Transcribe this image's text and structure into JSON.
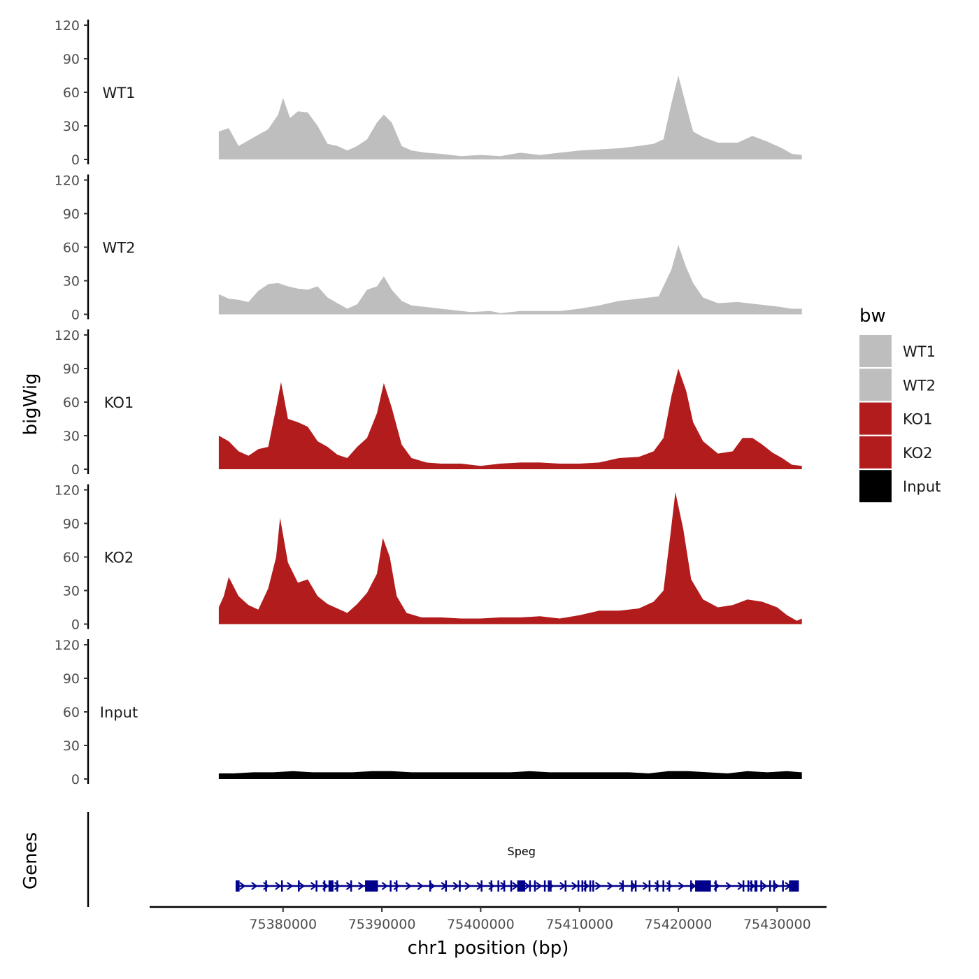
{
  "chart_data": {
    "type": "area",
    "xlabel": "chr1 position (bp)",
    "ylabel": "bigWig",
    "genes_label": "Genes",
    "xlim": [
      75366500,
      75435000
    ],
    "x_region": [
      75373500,
      75432500
    ],
    "x_ticks": [
      75380000,
      75390000,
      75400000,
      75410000,
      75420000,
      75430000
    ],
    "x_tick_labels": [
      "75380000",
      "75390000",
      "75400000",
      "75410000",
      "75420000",
      "75430000"
    ],
    "ylim": [
      0,
      120
    ],
    "y_ticks": [
      0,
      30,
      60,
      90,
      120
    ],
    "y_tick_labels": [
      "0",
      "30",
      "60",
      "90",
      "120"
    ],
    "legend": {
      "title": "bw",
      "entries": [
        "WT1",
        "WT2",
        "KO1",
        "KO2",
        "Input"
      ]
    },
    "colors": {
      "WT1": "#bebebe",
      "WT2": "#bebebe",
      "KO1": "#b21c1c",
      "KO2": "#b21c1c",
      "Input": "#000000",
      "gene": "#00008b"
    },
    "series": [
      {
        "name": "WT1",
        "points": [
          [
            75373500,
            25
          ],
          [
            75374500,
            28
          ],
          [
            75375500,
            12
          ],
          [
            75376500,
            17
          ],
          [
            75377500,
            22
          ],
          [
            75378500,
            27
          ],
          [
            75379500,
            40
          ],
          [
            75380000,
            55
          ],
          [
            75380700,
            37
          ],
          [
            75381500,
            43
          ],
          [
            75382500,
            42
          ],
          [
            75383500,
            30
          ],
          [
            75384500,
            14
          ],
          [
            75385500,
            12
          ],
          [
            75386500,
            8
          ],
          [
            75387500,
            12
          ],
          [
            75388500,
            18
          ],
          [
            75389500,
            33
          ],
          [
            75390200,
            40
          ],
          [
            75391000,
            33
          ],
          [
            75392000,
            12
          ],
          [
            75393000,
            8
          ],
          [
            75394500,
            6
          ],
          [
            75396000,
            5
          ],
          [
            75398000,
            3
          ],
          [
            75400000,
            4
          ],
          [
            75402000,
            3
          ],
          [
            75404000,
            6
          ],
          [
            75406000,
            4
          ],
          [
            75408000,
            6
          ],
          [
            75410000,
            8
          ],
          [
            75412000,
            9
          ],
          [
            75414000,
            10
          ],
          [
            75416000,
            12
          ],
          [
            75417500,
            14
          ],
          [
            75418500,
            18
          ],
          [
            75419300,
            50
          ],
          [
            75420000,
            75
          ],
          [
            75420800,
            48
          ],
          [
            75421500,
            25
          ],
          [
            75422500,
            20
          ],
          [
            75424000,
            15
          ],
          [
            75426000,
            15
          ],
          [
            75427500,
            21
          ],
          [
            75429000,
            16
          ],
          [
            75430500,
            10
          ],
          [
            75431500,
            5
          ],
          [
            75432500,
            4
          ]
        ]
      },
      {
        "name": "WT2",
        "points": [
          [
            75373500,
            18
          ],
          [
            75374500,
            14
          ],
          [
            75375500,
            13
          ],
          [
            75376500,
            11
          ],
          [
            75377500,
            21
          ],
          [
            75378500,
            27
          ],
          [
            75379500,
            28
          ],
          [
            75380500,
            25
          ],
          [
            75381500,
            23
          ],
          [
            75382500,
            22
          ],
          [
            75383500,
            25
          ],
          [
            75384500,
            15
          ],
          [
            75385500,
            10
          ],
          [
            75386500,
            5
          ],
          [
            75387500,
            9
          ],
          [
            75388500,
            22
          ],
          [
            75389500,
            25
          ],
          [
            75390200,
            34
          ],
          [
            75391000,
            22
          ],
          [
            75392000,
            12
          ],
          [
            75393000,
            8
          ],
          [
            75395000,
            6
          ],
          [
            75397000,
            4
          ],
          [
            75399000,
            2
          ],
          [
            75401000,
            3
          ],
          [
            75402000,
            1
          ],
          [
            75404000,
            3
          ],
          [
            75406000,
            3
          ],
          [
            75408000,
            3
          ],
          [
            75410000,
            5
          ],
          [
            75412000,
            8
          ],
          [
            75414000,
            12
          ],
          [
            75416000,
            14
          ],
          [
            75418000,
            16
          ],
          [
            75419300,
            40
          ],
          [
            75420000,
            62
          ],
          [
            75420800,
            42
          ],
          [
            75421500,
            28
          ],
          [
            75422500,
            15
          ],
          [
            75424000,
            10
          ],
          [
            75426000,
            11
          ],
          [
            75428000,
            9
          ],
          [
            75430000,
            7
          ],
          [
            75431500,
            5
          ],
          [
            75432500,
            5
          ]
        ]
      },
      {
        "name": "KO1",
        "points": [
          [
            75373500,
            30
          ],
          [
            75374500,
            25
          ],
          [
            75375500,
            16
          ],
          [
            75376500,
            12
          ],
          [
            75377500,
            18
          ],
          [
            75378500,
            20
          ],
          [
            75379300,
            55
          ],
          [
            75379800,
            78
          ],
          [
            75380500,
            45
          ],
          [
            75381500,
            42
          ],
          [
            75382500,
            38
          ],
          [
            75383500,
            25
          ],
          [
            75384500,
            20
          ],
          [
            75385500,
            13
          ],
          [
            75386500,
            10
          ],
          [
            75387500,
            20
          ],
          [
            75388500,
            28
          ],
          [
            75389500,
            50
          ],
          [
            75390200,
            77
          ],
          [
            75391000,
            55
          ],
          [
            75392000,
            22
          ],
          [
            75393000,
            10
          ],
          [
            75394500,
            6
          ],
          [
            75396000,
            5
          ],
          [
            75398000,
            5
          ],
          [
            75400000,
            3
          ],
          [
            75402000,
            5
          ],
          [
            75404000,
            6
          ],
          [
            75406000,
            6
          ],
          [
            75408000,
            5
          ],
          [
            75410000,
            5
          ],
          [
            75412000,
            6
          ],
          [
            75414000,
            10
          ],
          [
            75416000,
            11
          ],
          [
            75417500,
            16
          ],
          [
            75418500,
            28
          ],
          [
            75419300,
            65
          ],
          [
            75420000,
            90
          ],
          [
            75420800,
            70
          ],
          [
            75421500,
            42
          ],
          [
            75422500,
            25
          ],
          [
            75424000,
            14
          ],
          [
            75425500,
            16
          ],
          [
            75426500,
            28
          ],
          [
            75427500,
            28
          ],
          [
            75428500,
            22
          ],
          [
            75429500,
            15
          ],
          [
            75430500,
            10
          ],
          [
            75431500,
            4
          ],
          [
            75432500,
            3
          ]
        ]
      },
      {
        "name": "KO2",
        "points": [
          [
            75373500,
            15
          ],
          [
            75374000,
            25
          ],
          [
            75374500,
            42
          ],
          [
            75375500,
            25
          ],
          [
            75376500,
            17
          ],
          [
            75377500,
            13
          ],
          [
            75378500,
            32
          ],
          [
            75379300,
            60
          ],
          [
            75379700,
            95
          ],
          [
            75380500,
            55
          ],
          [
            75381500,
            37
          ],
          [
            75382500,
            40
          ],
          [
            75383500,
            25
          ],
          [
            75384500,
            18
          ],
          [
            75385500,
            14
          ],
          [
            75386500,
            10
          ],
          [
            75387500,
            18
          ],
          [
            75388500,
            28
          ],
          [
            75389500,
            45
          ],
          [
            75390100,
            77
          ],
          [
            75390800,
            60
          ],
          [
            75391500,
            25
          ],
          [
            75392500,
            10
          ],
          [
            75394000,
            6
          ],
          [
            75396000,
            6
          ],
          [
            75398000,
            5
          ],
          [
            75400000,
            5
          ],
          [
            75402000,
            6
          ],
          [
            75404000,
            6
          ],
          [
            75406000,
            7
          ],
          [
            75408000,
            5
          ],
          [
            75410000,
            8
          ],
          [
            75412000,
            12
          ],
          [
            75414000,
            12
          ],
          [
            75416000,
            14
          ],
          [
            75417500,
            20
          ],
          [
            75418500,
            30
          ],
          [
            75419200,
            80
          ],
          [
            75419700,
            118
          ],
          [
            75420500,
            85
          ],
          [
            75421300,
            40
          ],
          [
            75422500,
            22
          ],
          [
            75424000,
            15
          ],
          [
            75425500,
            17
          ],
          [
            75427000,
            22
          ],
          [
            75428500,
            20
          ],
          [
            75430000,
            15
          ],
          [
            75431000,
            8
          ],
          [
            75432000,
            3
          ],
          [
            75432500,
            5
          ]
        ]
      },
      {
        "name": "Input",
        "points": [
          [
            75373500,
            5
          ],
          [
            75375000,
            5
          ],
          [
            75377000,
            6
          ],
          [
            75379000,
            6
          ],
          [
            75381000,
            7
          ],
          [
            75383000,
            6
          ],
          [
            75385000,
            6
          ],
          [
            75387000,
            6
          ],
          [
            75389000,
            7
          ],
          [
            75391000,
            7
          ],
          [
            75393000,
            6
          ],
          [
            75395000,
            6
          ],
          [
            75397000,
            6
          ],
          [
            75399000,
            6
          ],
          [
            75401000,
            6
          ],
          [
            75403000,
            6
          ],
          [
            75405000,
            7
          ],
          [
            75407000,
            6
          ],
          [
            75409000,
            6
          ],
          [
            75411000,
            6
          ],
          [
            75413000,
            6
          ],
          [
            75415000,
            6
          ],
          [
            75417000,
            5
          ],
          [
            75419000,
            7
          ],
          [
            75421000,
            7
          ],
          [
            75423000,
            6
          ],
          [
            75425000,
            5
          ],
          [
            75427000,
            7
          ],
          [
            75429000,
            6
          ],
          [
            75431000,
            7
          ],
          [
            75432500,
            6
          ]
        ]
      }
    ],
    "gene": {
      "name": "Speg",
      "start": 75375200,
      "end": 75432200,
      "exons": [
        [
          75375200,
          75375600
        ],
        [
          75378200,
          75378300
        ],
        [
          75379800,
          75379900
        ],
        [
          75381500,
          75381600
        ],
        [
          75383300,
          75383400
        ],
        [
          75384100,
          75384200
        ],
        [
          75384600,
          75385100
        ],
        [
          75385400,
          75385500
        ],
        [
          75386800,
          75386900
        ],
        [
          75388300,
          75389600
        ],
        [
          75390800,
          75390900
        ],
        [
          75391400,
          75391500
        ],
        [
          75394800,
          75394900
        ],
        [
          75396400,
          75396500
        ],
        [
          75397800,
          75397900
        ],
        [
          75400000,
          75400100
        ],
        [
          75401000,
          75401100
        ],
        [
          75401700,
          75401800
        ],
        [
          75402300,
          75402400
        ],
        [
          75403000,
          75403100
        ],
        [
          75403700,
          75404500
        ],
        [
          75404900,
          75405000
        ],
        [
          75405400,
          75405500
        ],
        [
          75406400,
          75406500
        ],
        [
          75406800,
          75406900
        ],
        [
          75407000,
          75407100
        ],
        [
          75408500,
          75408600
        ],
        [
          75409800,
          75409900
        ],
        [
          75410200,
          75410300
        ],
        [
          75410500,
          75410600
        ],
        [
          75411000,
          75411100
        ],
        [
          75411300,
          75411400
        ],
        [
          75414300,
          75414400
        ],
        [
          75415200,
          75415300
        ],
        [
          75415600,
          75415700
        ],
        [
          75417000,
          75417100
        ],
        [
          75417800,
          75417900
        ],
        [
          75418400,
          75418500
        ],
        [
          75419000,
          75419100
        ],
        [
          75421200,
          75421300
        ],
        [
          75421700,
          75423300
        ],
        [
          75423700,
          75423800
        ],
        [
          75426500,
          75426600
        ],
        [
          75427000,
          75427100
        ],
        [
          75427300,
          75427400
        ],
        [
          75427700,
          75428000
        ],
        [
          75428300,
          75428400
        ],
        [
          75429200,
          75429300
        ],
        [
          75429600,
          75429700
        ],
        [
          75430500,
          75430600
        ],
        [
          75431200,
          75432200
        ]
      ]
    }
  }
}
